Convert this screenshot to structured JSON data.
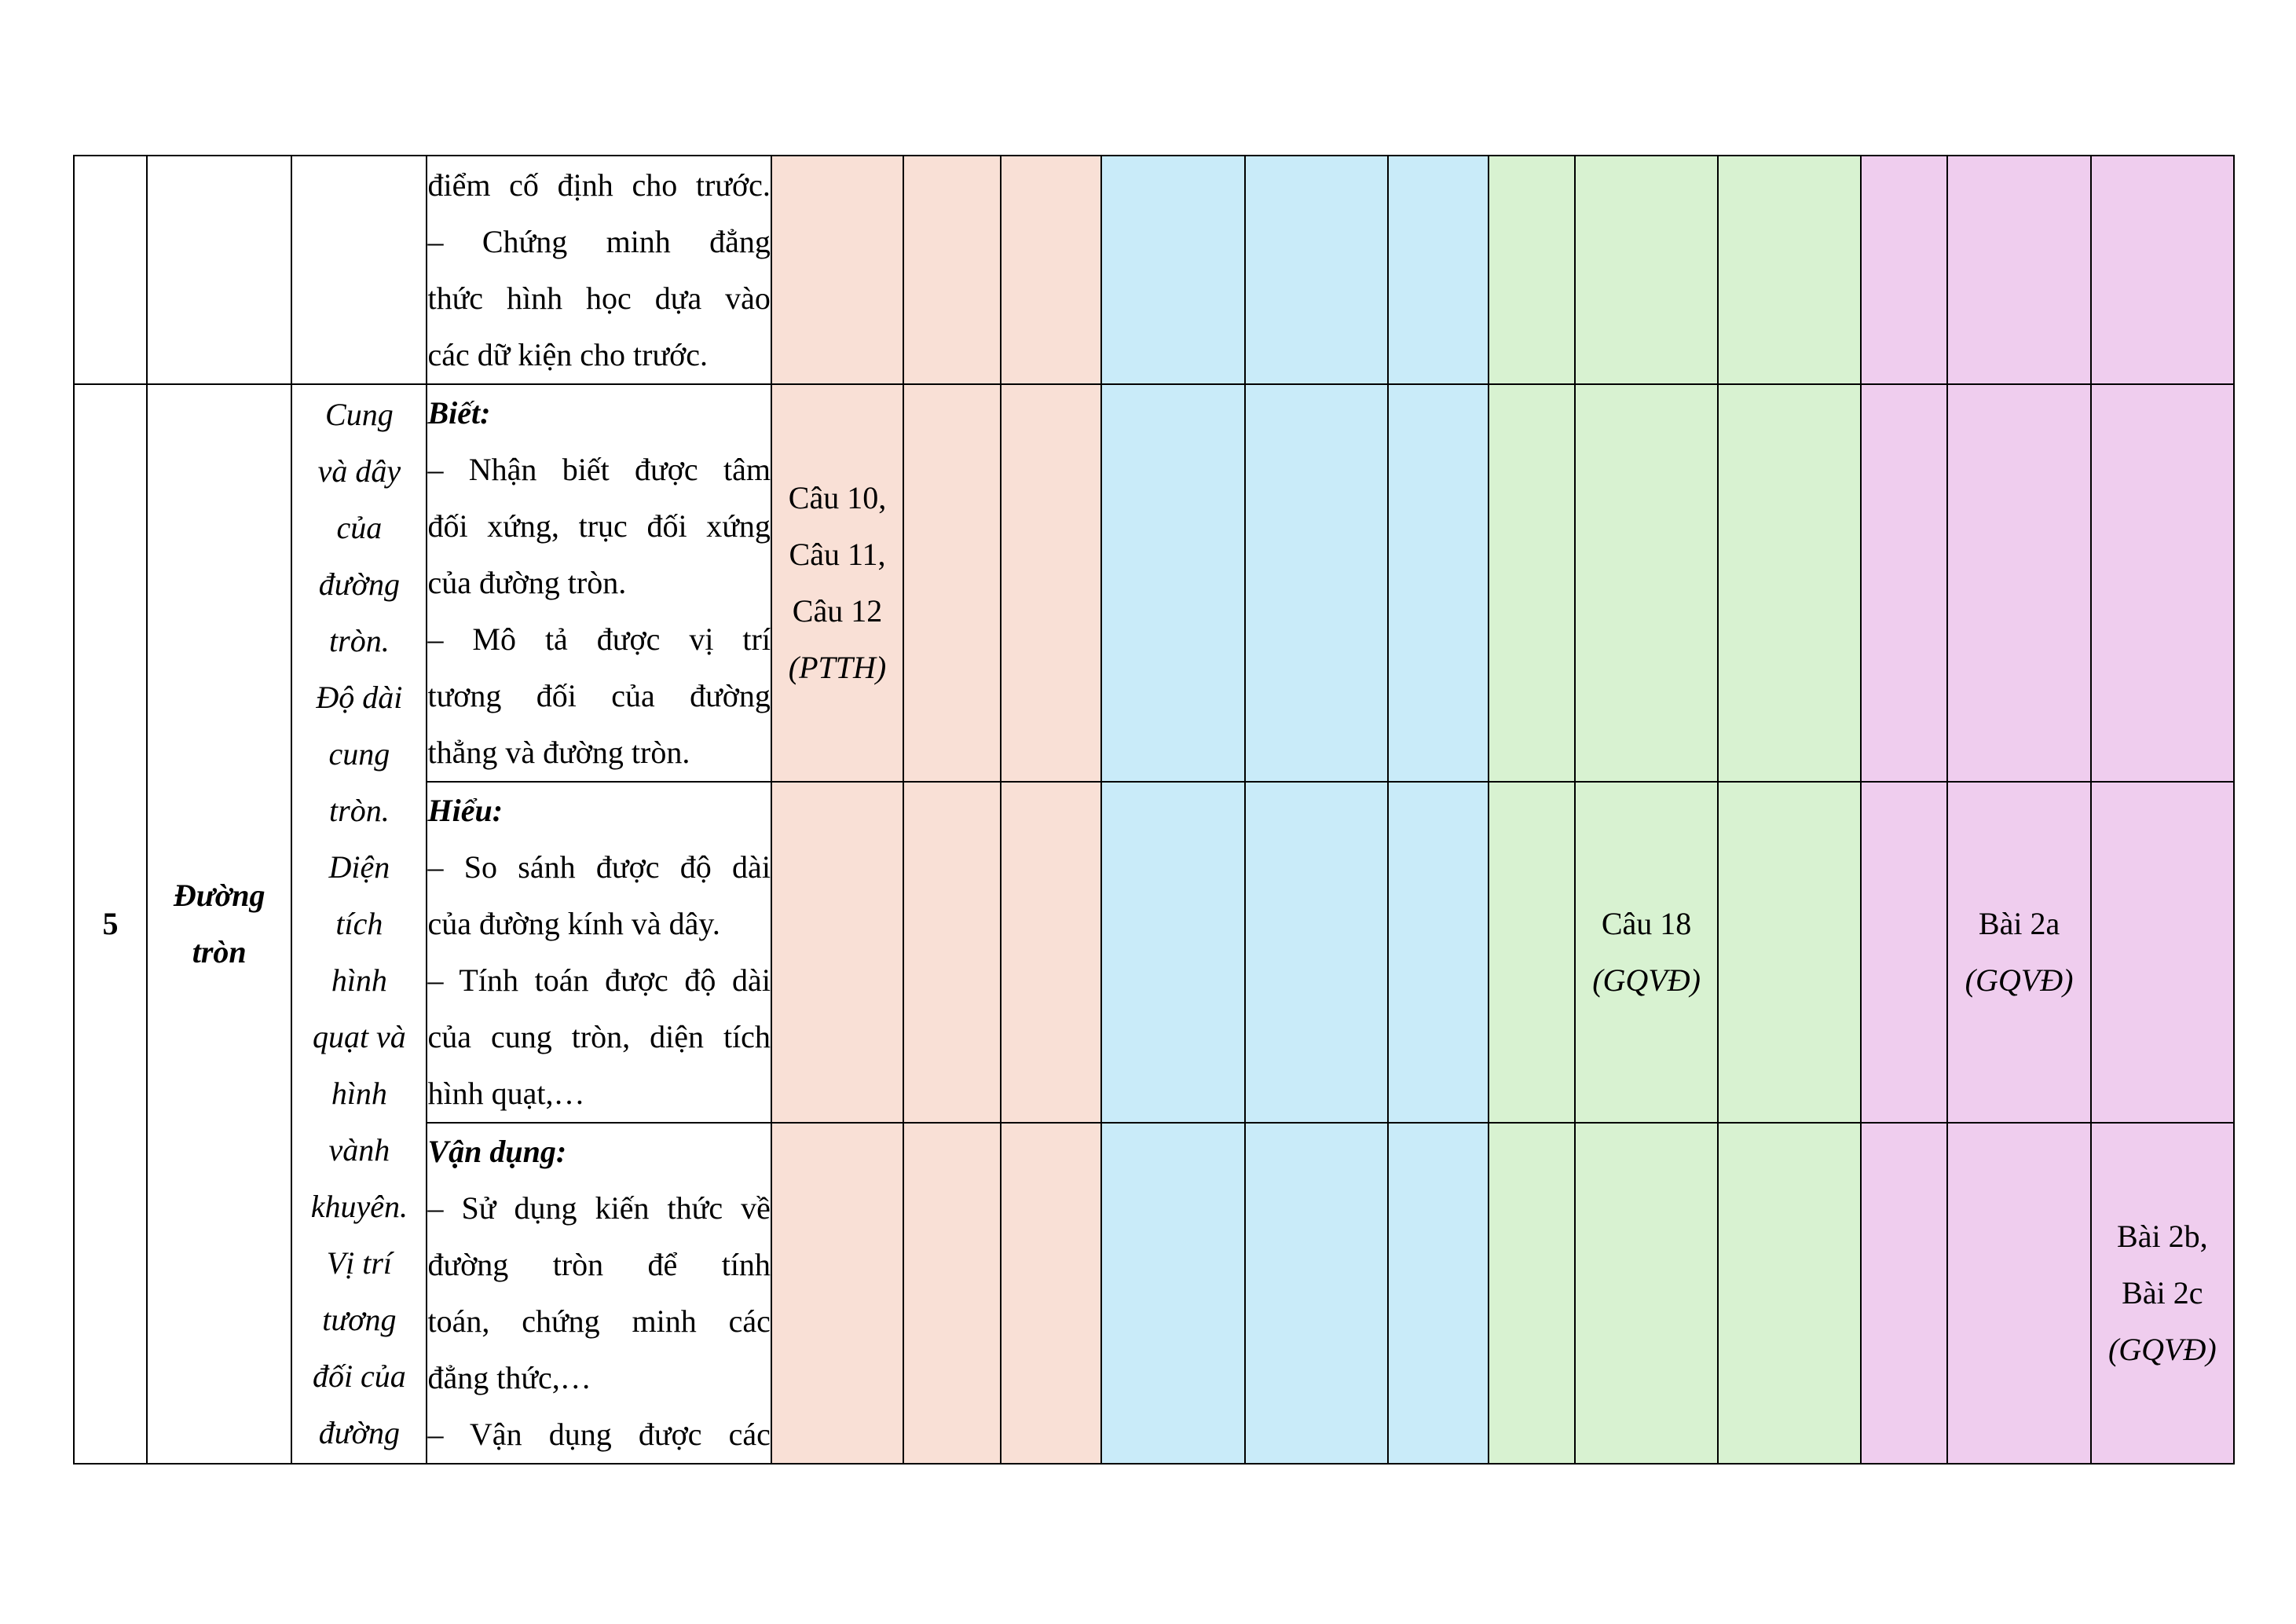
{
  "colors": {
    "recognize": "#f9e0d6",
    "understand": "#c9ebf9",
    "apply": "#d8f2d1",
    "apply_high": "#efcdee",
    "border": "#000000"
  },
  "row_continued": {
    "content_lines": [
      "điểm cố định cho trước.",
      "– Chứng minh đẳng",
      "thức hình học dựa vào",
      "các dữ kiện cho trước."
    ]
  },
  "section": {
    "number": "5",
    "chapter_lines": [
      "Đường",
      "tròn"
    ],
    "topic_lines": [
      "Cung",
      "và dây",
      "của",
      "đường",
      "tròn.",
      "Độ dài",
      "cung",
      "tròn.",
      "Diện",
      "tích",
      "hình",
      "quạt và",
      "hình",
      "vành",
      "khuyên.",
      "Vị trí",
      "tương",
      "đối của",
      "đường"
    ],
    "know": {
      "heading": "Biết:",
      "lines": [
        "– Nhận biết được tâm",
        "đối xứng, trục đối xứng",
        "của đường tròn.",
        "– Mô tả được vị trí",
        "tương đối của đường",
        "thẳng và đường tròn."
      ],
      "cell_lines": [
        "Câu 10,",
        "Câu 11,",
        "Câu 12"
      ],
      "cell_note": "(PTTH)"
    },
    "understand": {
      "heading": "Hiểu:",
      "lines": [
        "– So sánh được độ dài",
        "của đường kính và dây.",
        "– Tính toán được độ dài",
        "của cung tròn, diện tích",
        "hình quạt,…"
      ],
      "green_cell": "Câu 18",
      "green_note": "(GQVĐ)",
      "pink_cell": "Bài 2a",
      "pink_note": "(GQVĐ)"
    },
    "apply": {
      "heading": "Vận dụng:",
      "lines": [
        "– Sử dụng kiến thức về",
        "đường tròn để tính",
        "toán, chứng minh các",
        "đẳng thức,…",
        "– Vận dụng được các"
      ],
      "pink_lines": [
        "Bài 2b,",
        "Bài 2c"
      ],
      "pink_note": "(GQVĐ)"
    }
  }
}
